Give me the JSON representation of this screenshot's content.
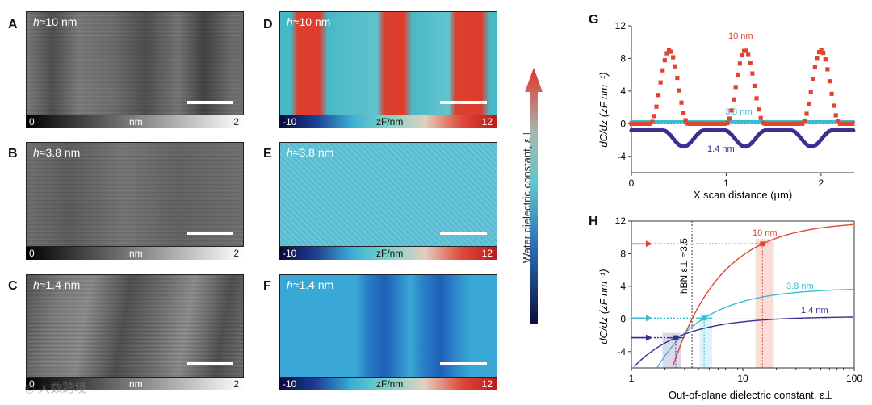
{
  "panels": {
    "A": {
      "label": "A",
      "h_text": "h",
      "approx": "≈10 nm"
    },
    "B": {
      "label": "B",
      "h_text": "h",
      "approx": "≈3.8 nm"
    },
    "C": {
      "label": "C",
      "h_text": "h",
      "approx": "≈1.4 nm"
    },
    "D": {
      "label": "D",
      "h_text": "h",
      "approx": "≈10 nm"
    },
    "E": {
      "label": "E",
      "h_text": "h",
      "approx": "≈3.8 nm"
    },
    "F": {
      "label": "F",
      "h_text": "h",
      "approx": "≈1.4 nm"
    },
    "G": {
      "label": "G"
    },
    "H": {
      "label": "H"
    }
  },
  "topo_bar": {
    "min": "0",
    "unit": "nm",
    "max": "2"
  },
  "cap_bar": {
    "min": "-10",
    "unit": "zF/nm",
    "max": "12"
  },
  "arrow_label": "Water dielectric constant, ε⊥",
  "watermark": "大数跨境",
  "colors": {
    "red": "#e0452f",
    "cyan": "#3bbcd0",
    "navy": "#3a2f8f"
  },
  "chart_data": [
    {
      "type": "line",
      "panel": "G",
      "xlabel": "X scan distance (μm)",
      "ylabel": "dC/dz (zF nm⁻¹)",
      "xlim": [
        0,
        2.35
      ],
      "ylim": [
        -6,
        12
      ],
      "xticks": [
        "0",
        "1",
        "2"
      ],
      "yticks": [
        "-4",
        "0",
        "4",
        "8",
        "12"
      ],
      "series": [
        {
          "name": "10 nm",
          "peaks": [
            0.4,
            1.2,
            2.0
          ],
          "peak_value": 9,
          "baseline": 0
        },
        {
          "name": "3.8 nm",
          "value": 0.2
        },
        {
          "name": "1.4 nm",
          "dips": [
            0.55,
            1.2,
            1.9
          ],
          "dip_value": -2.8,
          "baseline": -0.8
        }
      ]
    },
    {
      "type": "line",
      "panel": "H",
      "xlabel": "Out-of-plane dielectric constant, ε⊥",
      "ylabel": "dC/dz (zF nm⁻¹)",
      "xscale": "log",
      "xlim": [
        1,
        100
      ],
      "ylim": [
        -6,
        12
      ],
      "xticks": [
        "1",
        "10",
        "100"
      ],
      "yticks": [
        "-4",
        "0",
        "4",
        "8",
        "12"
      ],
      "annotation": "hBN ε⊥ ≈3.5",
      "annotation_x": 3.5,
      "series": [
        {
          "name": "10 nm",
          "asymptote": 12,
          "measured": 9.2,
          "eps_fit": 15
        },
        {
          "name": "3.8 nm",
          "asymptote": 3.8,
          "measured": 0.1,
          "eps_fit": 4.5
        },
        {
          "name": "1.4 nm",
          "asymptote": 0.3,
          "measured": -2.3,
          "eps_fit": 2.5
        }
      ]
    }
  ]
}
